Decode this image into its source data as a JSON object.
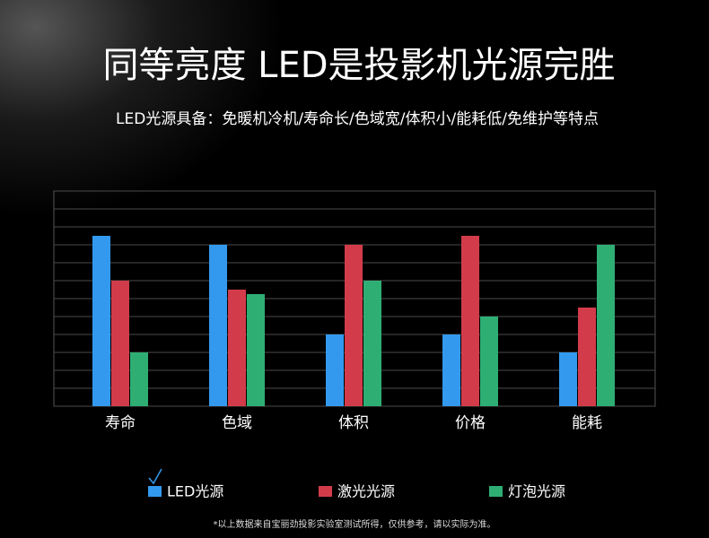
{
  "chart_data": {
    "type": "bar",
    "title": "同等亮度 LED是投影机光源完胜",
    "subtitle": "LED光源具备：免暖机冷机/寿命长/色域宽/体积小/能耗低/免维护等特点",
    "footnote": "*以上数据来自宝丽劲投影实验室测试所得，仅供参考，请以实际为准。",
    "categories": [
      "寿命",
      "色域",
      "体积",
      "价格",
      "能耗"
    ],
    "series": [
      {
        "name": "LED光源",
        "color": "#3399ee",
        "values": [
          9.5,
          9,
          4,
          4,
          3
        ]
      },
      {
        "name": "激光光源",
        "color": "#d23c4a",
        "values": [
          7,
          6.5,
          9,
          9.5,
          5.5
        ]
      },
      {
        "name": "灯泡光源",
        "color": "#2fae74",
        "values": [
          3,
          6.25,
          7,
          5,
          9
        ]
      }
    ],
    "ylim": [
      0,
      12
    ],
    "yticks": [
      0,
      1,
      2,
      3,
      4,
      5,
      6,
      7,
      8,
      9,
      10,
      11,
      12
    ],
    "grid": true
  }
}
